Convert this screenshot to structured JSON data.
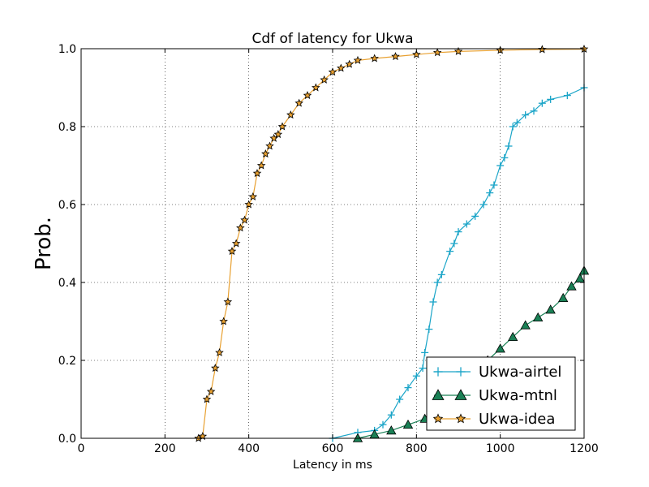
{
  "chart_data": {
    "type": "line",
    "title": "Cdf of latency for Ukwa",
    "xlabel": "Latency in ms",
    "ylabel": "Prob.",
    "xlim": [
      0,
      1200
    ],
    "ylim": [
      0,
      1.0
    ],
    "xticks": [
      0,
      200,
      400,
      600,
      800,
      1000,
      1200
    ],
    "xtick_labels": [
      "0",
      "200",
      "400",
      "600",
      "800",
      "1000",
      "1200"
    ],
    "yticks": [
      0,
      0.2,
      0.4,
      0.6,
      0.8,
      1.0
    ],
    "ytick_labels": [
      "0.0",
      "0.2",
      "0.4",
      "0.6",
      "0.8",
      "1.0"
    ],
    "grid": true,
    "legend_position": "lower-right",
    "series": [
      {
        "name": "Ukwa-airtel",
        "color": "#1ba5c8",
        "marker": "plus",
        "x": [
          600,
          660,
          700,
          720,
          740,
          760,
          780,
          800,
          815,
          820,
          830,
          840,
          850,
          860,
          880,
          890,
          900,
          920,
          940,
          960,
          975,
          985,
          1000,
          1010,
          1020,
          1030,
          1040,
          1060,
          1080,
          1100,
          1120,
          1160,
          1200
        ],
        "y": [
          0.0,
          0.015,
          0.02,
          0.035,
          0.06,
          0.1,
          0.13,
          0.16,
          0.18,
          0.22,
          0.28,
          0.35,
          0.4,
          0.42,
          0.48,
          0.5,
          0.53,
          0.55,
          0.57,
          0.6,
          0.63,
          0.65,
          0.7,
          0.72,
          0.75,
          0.8,
          0.81,
          0.83,
          0.84,
          0.86,
          0.87,
          0.88,
          0.9
        ]
      },
      {
        "name": "Ukwa-mtnl",
        "color": "#1a8055",
        "marker": "triangle",
        "x": [
          660,
          700,
          740,
          780,
          820,
          850,
          880,
          910,
          940,
          970,
          1000,
          1030,
          1060,
          1090,
          1120,
          1150,
          1170,
          1190,
          1200
        ],
        "y": [
          0.0,
          0.01,
          0.02,
          0.035,
          0.05,
          0.07,
          0.1,
          0.13,
          0.17,
          0.2,
          0.23,
          0.26,
          0.29,
          0.31,
          0.33,
          0.36,
          0.39,
          0.41,
          0.43
        ]
      },
      {
        "name": "Ukwa-idea",
        "color": "#e8a030",
        "marker": "star",
        "x": [
          280,
          290,
          300,
          310,
          320,
          330,
          340,
          350,
          360,
          370,
          380,
          390,
          400,
          410,
          420,
          430,
          440,
          450,
          460,
          470,
          480,
          500,
          520,
          540,
          560,
          580,
          600,
          620,
          640,
          660,
          700,
          750,
          800,
          850,
          900,
          1000,
          1100,
          1200
        ],
        "y": [
          0.0,
          0.005,
          0.1,
          0.12,
          0.18,
          0.22,
          0.3,
          0.35,
          0.48,
          0.5,
          0.54,
          0.56,
          0.6,
          0.62,
          0.68,
          0.7,
          0.73,
          0.75,
          0.77,
          0.78,
          0.8,
          0.83,
          0.86,
          0.88,
          0.9,
          0.92,
          0.94,
          0.95,
          0.96,
          0.97,
          0.975,
          0.98,
          0.985,
          0.99,
          0.993,
          0.996,
          0.998,
          0.999
        ]
      }
    ]
  }
}
